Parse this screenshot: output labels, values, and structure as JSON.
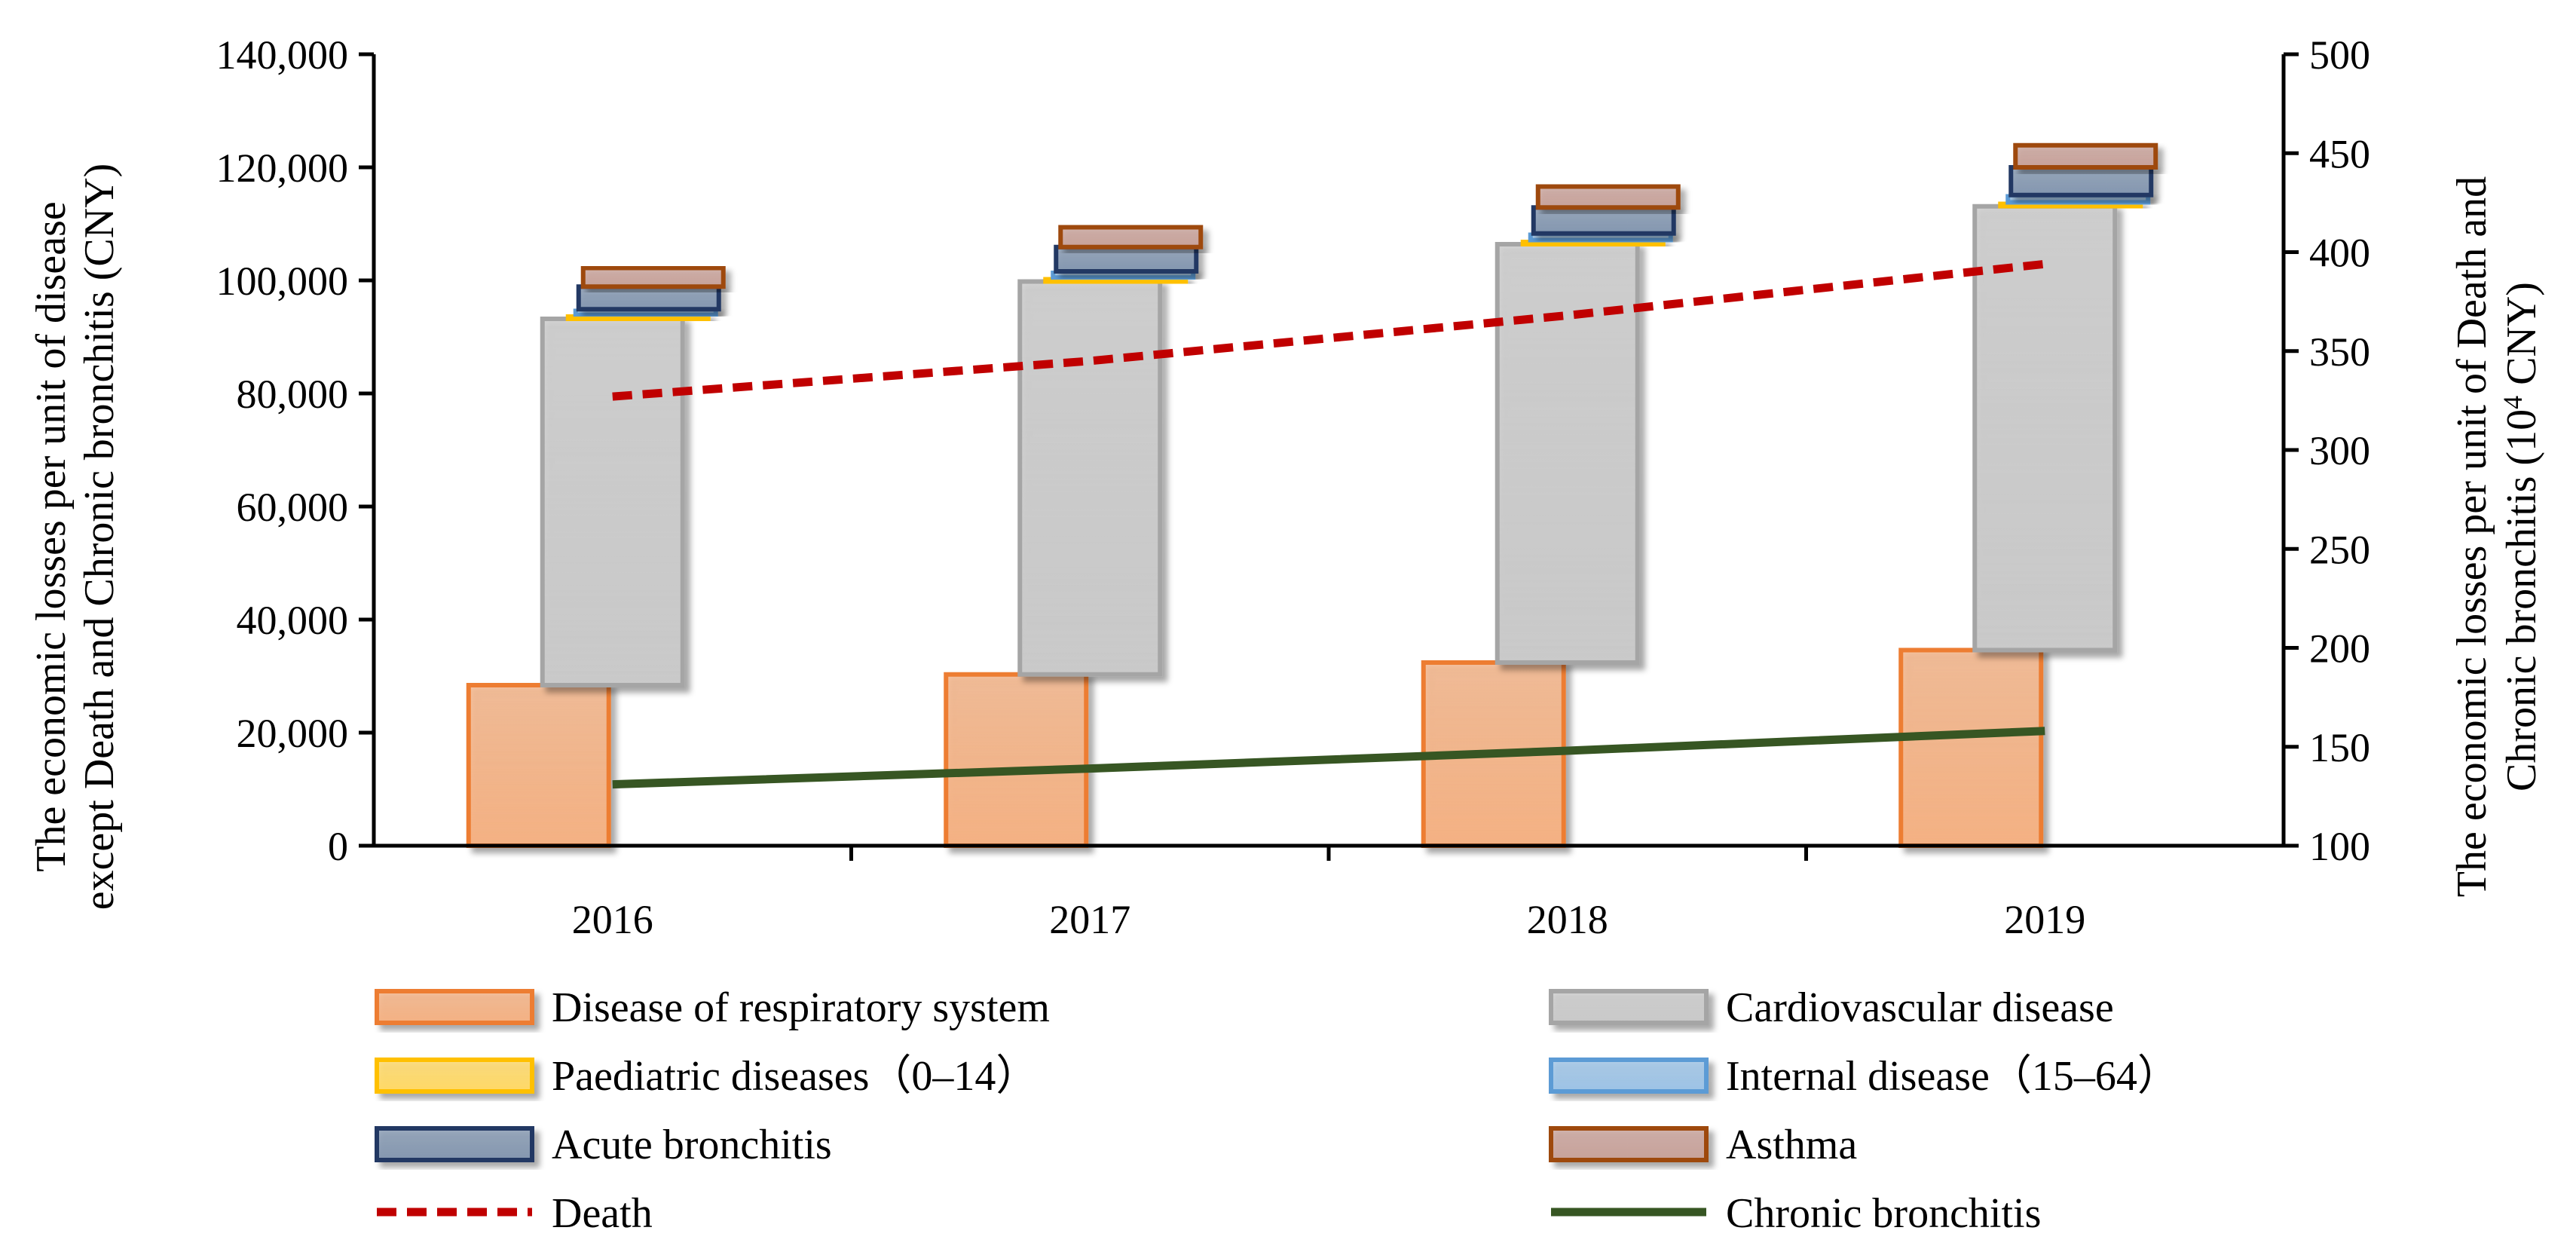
{
  "chart_data": {
    "type": "bar",
    "title": "",
    "categories": [
      "2016",
      "2017",
      "2018",
      "2019"
    ],
    "y_left": {
      "label_lines": [
        "The economic losses per unit of disease",
        "except Death and Chronic bronchitis (CNY)"
      ],
      "ylim": [
        0,
        140000
      ],
      "ticks": [
        {
          "value": 0,
          "label": "0"
        },
        {
          "value": 20000,
          "label": "20,000"
        },
        {
          "value": 40000,
          "label": "40,000"
        },
        {
          "value": 60000,
          "label": "60,000"
        },
        {
          "value": 80000,
          "label": "80,000"
        },
        {
          "value": 100000,
          "label": "100,000"
        },
        {
          "value": 120000,
          "label": "120,000"
        },
        {
          "value": 140000,
          "label": "140,000"
        }
      ]
    },
    "y_right": {
      "label_line1": "The economic losses per unit of Death and",
      "label_line2_prefix": "Chronic bronchitis (10",
      "label_line2_sup": "4",
      "label_line2_suffix": " CNY)",
      "ylim": [
        100,
        500
      ],
      "ticks": [
        {
          "value": 100,
          "label": "100"
        },
        {
          "value": 150,
          "label": "150"
        },
        {
          "value": 200,
          "label": "200"
        },
        {
          "value": 250,
          "label": "250"
        },
        {
          "value": 300,
          "label": "300"
        },
        {
          "value": 350,
          "label": "350"
        },
        {
          "value": 400,
          "label": "400"
        },
        {
          "value": 450,
          "label": "450"
        },
        {
          "value": 500,
          "label": "500"
        }
      ]
    },
    "bar_series": [
      {
        "key": "resp",
        "name": "Disease of respiratory system",
        "axis": "left",
        "values": [
          28400,
          30300,
          32400,
          34600
        ],
        "color": "#f4b183",
        "edge": "#ed7d31"
      },
      {
        "key": "cardio",
        "name": "Cardiovascular disease",
        "axis": "left",
        "values": [
          64800,
          69500,
          74000,
          78500
        ],
        "color": "#c9c9c9",
        "edge": "#a5a5a5"
      },
      {
        "key": "paed",
        "name": "Paediatric diseases（0–14）",
        "axis": "left",
        "values": [
          700,
          700,
          700,
          700
        ],
        "color": "#ffd966",
        "edge": "#ffc000"
      },
      {
        "key": "internal",
        "name": "Internal disease（15–64）",
        "axis": "left",
        "values": [
          1000,
          1100,
          1200,
          1300
        ],
        "color": "#9dc3e6",
        "edge": "#5b9bd5"
      },
      {
        "key": "acute",
        "name": "Acute bronchitis",
        "axis": "left",
        "values": [
          4000,
          4300,
          4600,
          4900
        ],
        "color": "#8497b0",
        "edge": "#203864"
      },
      {
        "key": "asthma",
        "name": "Asthma",
        "axis": "left",
        "values": [
          3300,
          3500,
          3700,
          3900
        ],
        "color": "#c8a29a",
        "edge": "#9e480e"
      }
    ],
    "line_series": [
      {
        "key": "death",
        "name": "Death",
        "axis": "right",
        "style": "dashed",
        "values": [
          327,
          345,
          368,
          394
        ],
        "color": "#c00000"
      },
      {
        "key": "chronic",
        "name": "Chronic bronchitis",
        "axis": "right",
        "style": "solid",
        "values": [
          131,
          139,
          148,
          158
        ],
        "color": "#375623"
      }
    ],
    "legend_position": "bottom",
    "grid": false
  }
}
